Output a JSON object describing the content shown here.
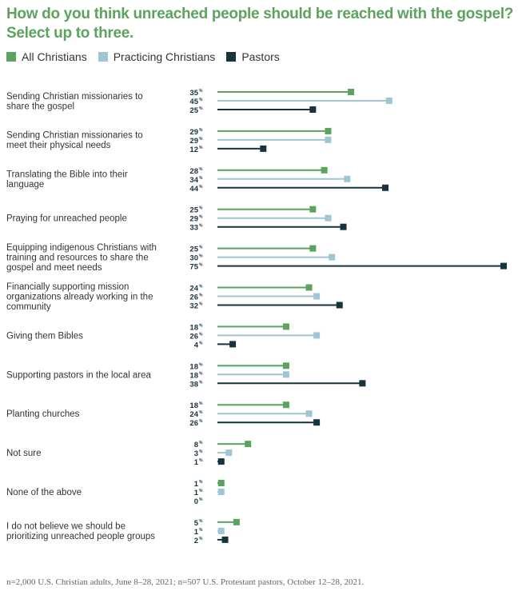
{
  "chart_data": {
    "type": "bar",
    "title": "How do you think unreached people should be reached with the gospel?",
    "subtitle": "Select up to three.",
    "value_suffix": "%",
    "series": [
      {
        "name": "All Christians",
        "color": "#5ba35e",
        "values": [
          35,
          29,
          28,
          25,
          25,
          24,
          18,
          18,
          18,
          8,
          1,
          5
        ]
      },
      {
        "name": "Practicing Christians",
        "color": "#9ec7d3",
        "values": [
          45,
          29,
          34,
          29,
          30,
          26,
          26,
          18,
          24,
          3,
          1,
          1
        ]
      },
      {
        "name": "Pastors",
        "color": "#17333d",
        "values": [
          25,
          12,
          44,
          33,
          75,
          32,
          4,
          38,
          26,
          1,
          0,
          2
        ]
      }
    ],
    "categories": [
      [
        "Sending Christian missionaries to",
        "share the gospel"
      ],
      [
        "Sending Christian missionaries to",
        "meet their physical needs"
      ],
      [
        "Translating the Bible into their",
        "language"
      ],
      [
        "Praying for unreached people"
      ],
      [
        "Equipping indigenous Christians with",
        "training and resources to share the",
        "gospel and meet needs"
      ],
      [
        "Financially supporting mission",
        "organizations already working in the",
        "community"
      ],
      [
        "Giving them Bibles"
      ],
      [
        "Supporting pastors in the local area"
      ],
      [
        "Planting churches"
      ],
      [
        "Not sure"
      ],
      [
        "None of the above"
      ],
      [
        "I do not believe we should be",
        "prioritizing unreached people groups"
      ]
    ],
    "xlim": [
      0,
      75
    ]
  },
  "footnote": "n=2,000 U.S. Christian adults, June 8–28, 2021; n=507 U.S. Protestant pastors, October 12–28, 2021."
}
